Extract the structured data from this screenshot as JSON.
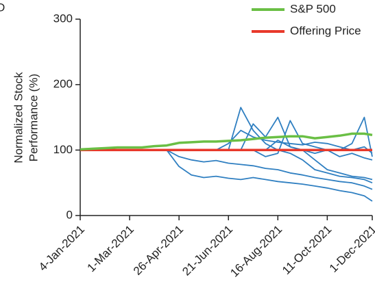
{
  "chart_data": {
    "type": "line",
    "panel_label": "D",
    "ylabel": [
      "Normalized Stock",
      "Performance (%)"
    ],
    "x": [
      "2021-01-04",
      "2021-01-18",
      "2021-02-01",
      "2021-02-15",
      "2021-03-01",
      "2021-03-15",
      "2021-03-29",
      "2021-04-12",
      "2021-04-26",
      "2021-05-10",
      "2021-05-24",
      "2021-06-07",
      "2021-06-21",
      "2021-07-05",
      "2021-07-19",
      "2021-08-02",
      "2021-08-16",
      "2021-08-30",
      "2021-09-13",
      "2021-09-27",
      "2021-10-11",
      "2021-10-25",
      "2021-11-08",
      "2021-11-22",
      "2021-12-01"
    ],
    "series": [
      {
        "color": "#2f7fc1",
        "values": [
          null,
          null,
          null,
          null,
          null,
          null,
          null,
          100,
          75,
          62,
          58,
          60,
          57,
          55,
          58,
          55,
          52,
          50,
          48,
          45,
          42,
          38,
          35,
          30,
          22
        ]
      },
      {
        "color": "#2f7fc1",
        "values": [
          null,
          null,
          null,
          null,
          null,
          null,
          null,
          100,
          90,
          85,
          82,
          84,
          80,
          78,
          76,
          72,
          70,
          65,
          62,
          58,
          55,
          52,
          50,
          45,
          40
        ]
      },
      {
        "color": "#2f7fc1",
        "values": [
          null,
          null,
          null,
          null,
          null,
          null,
          null,
          null,
          null,
          null,
          null,
          null,
          100,
          165,
          130,
          110,
          100,
          95,
          85,
          70,
          65,
          60,
          58,
          55,
          50
        ]
      },
      {
        "color": "#2f7fc1",
        "values": [
          null,
          null,
          null,
          null,
          null,
          null,
          null,
          null,
          null,
          null,
          null,
          null,
          null,
          100,
          140,
          120,
          150,
          105,
          100,
          95,
          100,
          90,
          95,
          88,
          85
        ]
      },
      {
        "color": "#2f7fc1",
        "values": [
          null,
          null,
          null,
          null,
          null,
          null,
          null,
          null,
          null,
          null,
          null,
          null,
          null,
          null,
          100,
          90,
          95,
          145,
          110,
          105,
          100,
          100,
          110,
          150,
          90
        ]
      },
      {
        "color": "#2f7fc1",
        "values": [
          null,
          null,
          null,
          null,
          null,
          null,
          null,
          null,
          null,
          null,
          null,
          null,
          null,
          null,
          null,
          100,
          115,
          105,
          100,
          85,
          70,
          65,
          60,
          58,
          55
        ]
      },
      {
        "color": "#2f7fc1",
        "values": [
          null,
          null,
          null,
          null,
          null,
          null,
          null,
          null,
          null,
          null,
          null,
          100,
          110,
          130,
          120,
          115,
          112,
          110,
          108,
          112,
          110,
          105,
          100,
          105,
          95
        ]
      },
      {
        "name": "Offering Price",
        "color": "#e8392b",
        "values": [
          100,
          100,
          100,
          100,
          100,
          100,
          100,
          100,
          100,
          100,
          100,
          100,
          100,
          100,
          100,
          100,
          100,
          100,
          100,
          100,
          100,
          100,
          100,
          100,
          100
        ]
      },
      {
        "name": "S&P 500",
        "color": "#6abf45",
        "values": [
          101,
          102,
          103,
          104,
          104,
          104,
          106,
          107,
          111,
          112,
          113,
          113,
          114,
          115,
          117,
          119,
          120,
          121,
          121,
          118,
          120,
          122,
          125,
          125,
          123
        ]
      }
    ],
    "legend": "top-right",
    "xlim": [
      "2021-01-04",
      "2021-12-01"
    ],
    "xticks": [
      {
        "value": "2021-01-04",
        "label": "4-Jan-2021"
      },
      {
        "value": "2021-03-01",
        "label": "1-Mar-2021"
      },
      {
        "value": "2021-04-26",
        "label": "26-Apr-2021"
      },
      {
        "value": "2021-06-21",
        "label": "21-Jun-2021"
      },
      {
        "value": "2021-08-16",
        "label": "16-Aug-2021"
      },
      {
        "value": "2021-10-11",
        "label": "11-Oct-2021"
      },
      {
        "value": "2021-12-01",
        "label": "1-Dec-2021"
      }
    ],
    "ylim": [
      0,
      300
    ],
    "yticks": [
      0,
      100,
      200,
      300
    ]
  }
}
